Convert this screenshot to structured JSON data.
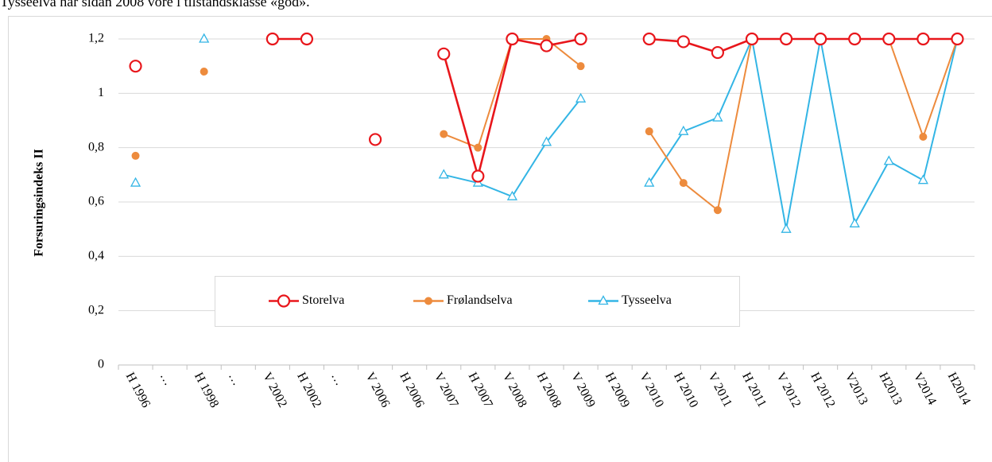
{
  "text": "Tysseelva har sidan 2008 vore i tilstandsklasse «god».",
  "chart_data": {
    "type": "line",
    "y_label": "Forsuringsindeks II",
    "categories": [
      "H 1996",
      "…",
      "H 1998",
      "…",
      "V 2002",
      "H 2002",
      "…",
      "V 2006",
      "H 2006",
      "V 2007",
      "H 2007",
      "V 2008",
      "H 2008",
      "V 2009",
      "H 2009",
      "V 2010",
      "H 2010",
      "V 2011",
      "H 2011",
      "V 2012",
      "H 2012",
      "V2013",
      "H2013",
      "V2014",
      "H2014"
    ],
    "series": [
      {
        "name": "Storelva",
        "color": "#e8161b",
        "marker": "circle-open",
        "values": [
          1.1,
          null,
          null,
          null,
          1.2,
          1.2,
          null,
          0.83,
          null,
          1.145,
          0.695,
          1.2,
          1.175,
          1.2,
          null,
          1.2,
          1.19,
          1.15,
          1.2,
          1.2,
          1.2,
          1.2,
          1.2,
          1.2,
          1.2
        ]
      },
      {
        "name": "Frølandselva",
        "color": "#ed8b3d",
        "marker": "circle-filled",
        "values": [
          0.77,
          null,
          1.08,
          null,
          null,
          null,
          null,
          null,
          null,
          0.85,
          0.8,
          1.2,
          1.2,
          1.1,
          null,
          0.86,
          0.67,
          0.57,
          1.2,
          1.2,
          1.2,
          1.2,
          1.2,
          0.84,
          1.2
        ]
      },
      {
        "name": "Tysseelva",
        "color": "#33b5e5",
        "marker": "triangle-open",
        "values": [
          0.67,
          null,
          1.2,
          null,
          null,
          null,
          null,
          null,
          null,
          0.7,
          0.67,
          0.62,
          0.82,
          0.98,
          null,
          0.67,
          0.86,
          0.91,
          1.2,
          0.5,
          1.2,
          0.52,
          0.75,
          0.68,
          1.2
        ]
      }
    ],
    "ylim": [
      0,
      1.2
    ],
    "yticks": [
      0,
      {
        "value": 0.2,
        "label": "0,2"
      },
      {
        "value": 0.4,
        "label": "0,4"
      },
      {
        "value": 0.6,
        "label": "0,6"
      },
      {
        "value": 0.8,
        "label": "0,8"
      },
      1,
      {
        "value": 1.2,
        "label": "1,2"
      }
    ],
    "grid": true,
    "legend": "lower center"
  }
}
